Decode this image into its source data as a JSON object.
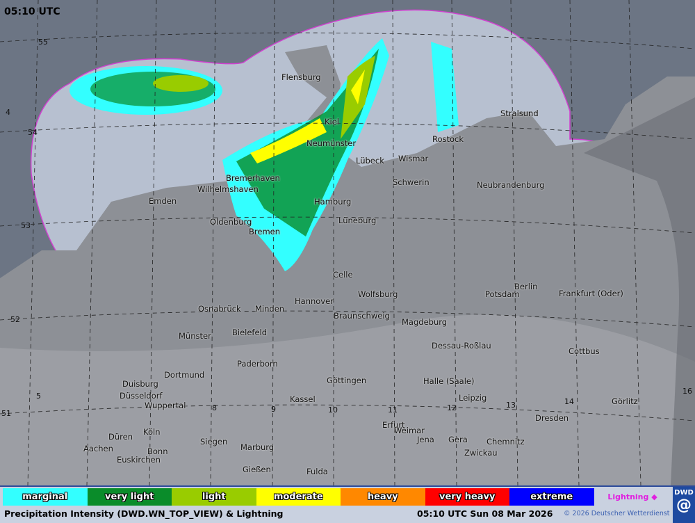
{
  "header": {
    "time": "05:10 UTC"
  },
  "map": {
    "cities": [
      "Flensburg",
      "Kiel",
      "Neumünster",
      "Lübeck",
      "Wismar",
      "Rostock",
      "Stralsund",
      "Schwerin",
      "Neubrandenburg",
      "Bremerhaven",
      "Wilhelmshaven",
      "Emden",
      "Hamburg",
      "Oldenburg",
      "Bremen",
      "Lüneburg",
      "Celle",
      "Wolfsburg",
      "Berlin",
      "Potsdam",
      "Frankfurt (Oder)",
      "Osnabrück",
      "Minden",
      "Hannover",
      "Braunschweig",
      "Magdeburg",
      "Bielefeld",
      "Münster",
      "Dessau-Roßlau",
      "Cottbus",
      "Paderborn",
      "Dortmund",
      "Duisburg",
      "Düsseldorf",
      "Wuppertal",
      "Göttingen",
      "Halle (Saale)",
      "Kassel",
      "Leipzig",
      "Görlitz",
      "Dresden",
      "Erfurt",
      "Weimar",
      "Jena",
      "Gera",
      "Chemnitz",
      "Zwickau",
      "Köln",
      "Düren",
      "Aachen",
      "Bonn",
      "Euskirchen",
      "Siegen",
      "Marburg",
      "Gießen",
      "Fulda"
    ],
    "grid_labels": [
      "55",
      "54",
      "53",
      "52",
      "51",
      "4",
      "5",
      "8",
      "9",
      "10",
      "11",
      "12",
      "13",
      "14",
      "16"
    ],
    "colors": {
      "sea": "#b7c0d0",
      "land": "#8d9096",
      "outside": "#6c7584",
      "coverage_border": "#d040d0"
    }
  },
  "legend": {
    "items": [
      {
        "label": "marginal",
        "color": "#33ffff"
      },
      {
        "label": "very light",
        "color": "#0a8c2a"
      },
      {
        "label": "light",
        "color": "#99cc00"
      },
      {
        "label": "moderate",
        "color": "#ffff00"
      },
      {
        "label": "heavy",
        "color": "#ff8800"
      },
      {
        "label": "very heavy",
        "color": "#ff0000"
      },
      {
        "label": "extreme",
        "color": "#0000ff"
      }
    ],
    "lightning": "Lightning ◆"
  },
  "footer": {
    "title": "Precipitation Intensity (DWD.WN_TOP_VIEW) & Lightning",
    "time": "05:10 UTC Sun 08 Mar 2026",
    "copyright": "© 2026 Deutscher Wetterdienst",
    "logo": "DWD"
  }
}
